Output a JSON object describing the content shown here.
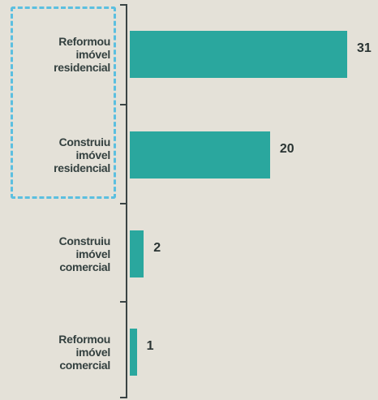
{
  "chart_data": {
    "type": "bar",
    "orientation": "horizontal",
    "categories": [
      "Reformou imóvel residencial",
      "Construiu imóvel residencial",
      "Construiu imóvel comercial",
      "Reformou imóvel comercial"
    ],
    "values": [
      31,
      20,
      2,
      1
    ],
    "color": "#2aa79e"
  }
}
